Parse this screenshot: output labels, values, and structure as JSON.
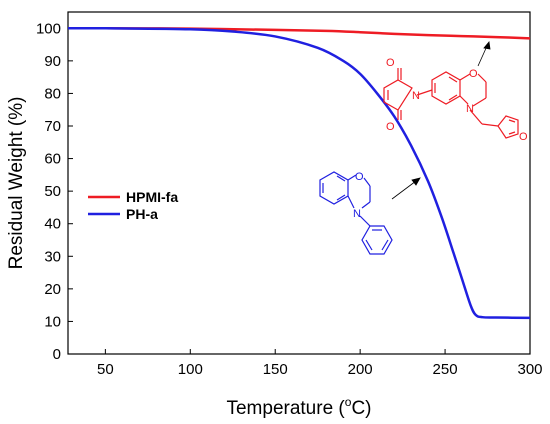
{
  "chart_data": {
    "type": "line",
    "title": "",
    "xlabel_prefix": "Temperature (",
    "xlabel_sup": "o",
    "xlabel_suffix": "C)",
    "ylabel": "Residual Weight (%)",
    "xlim": [
      28,
      300
    ],
    "ylim": [
      0,
      105
    ],
    "xticks": [
      50,
      100,
      150,
      200,
      250,
      300
    ],
    "yticks": [
      0,
      10,
      20,
      30,
      40,
      50,
      60,
      70,
      80,
      90,
      100
    ],
    "grid": false,
    "legend_position": "center-left",
    "series": [
      {
        "name": "HPMI-fa",
        "color": "#ee1c24",
        "x": [
          28,
          50,
          100,
          150,
          180,
          200,
          220,
          240,
          260,
          280,
          300
        ],
        "y": [
          100,
          100,
          99.9,
          99.5,
          99.2,
          98.8,
          98.3,
          97.9,
          97.6,
          97.3,
          96.9
        ]
      },
      {
        "name": "PH-a",
        "color": "#2020e0",
        "x": [
          28,
          50,
          100,
          125,
          150,
          175,
          190,
          200,
          210,
          220,
          230,
          240,
          248,
          255,
          260,
          265,
          268,
          272,
          280,
          300
        ],
        "y": [
          100,
          100,
          99.7,
          99.0,
          97.5,
          94.0,
          90.0,
          86.0,
          80.0,
          73.0,
          64.0,
          53.0,
          42.0,
          31.0,
          23.0,
          15.0,
          12.0,
          11.3,
          11.2,
          11.1
        ]
      }
    ],
    "annotations": [
      {
        "type": "arrow",
        "target_series": "HPMI-fa",
        "label": "HPMI-fa structure"
      },
      {
        "type": "arrow",
        "target_series": "PH-a",
        "label": "PH-a structure"
      }
    ],
    "molecule_atoms": {
      "O": "O",
      "N": "N"
    }
  }
}
